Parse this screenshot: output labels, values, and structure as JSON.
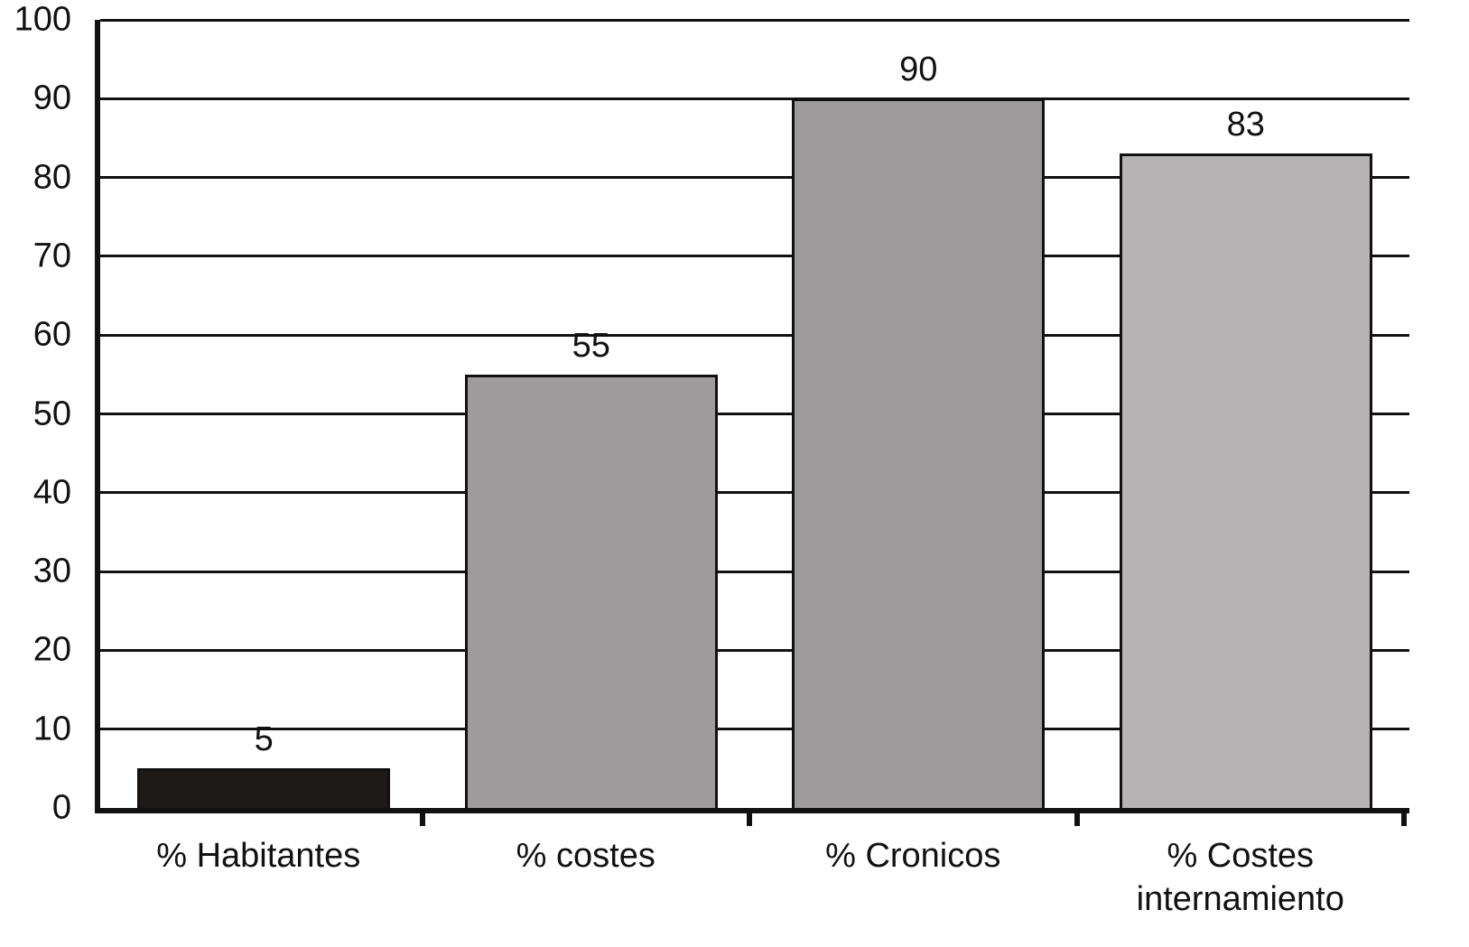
{
  "chart_data": {
    "type": "bar",
    "categories": [
      "% Habitantes",
      "% costes",
      "% Cronicos",
      "% Costes internamiento"
    ],
    "values": [
      5,
      55,
      90,
      83
    ],
    "data_labels": [
      "5",
      "55",
      "90",
      "83"
    ],
    "bar_colors": [
      "#1e1a18",
      "#9d9b9b",
      "#9d9b9b",
      "#b5b3b3"
    ],
    "title": "",
    "xlabel": "",
    "ylabel": "",
    "ylim": [
      0,
      100
    ],
    "yticks": [
      0,
      10,
      20,
      30,
      40,
      50,
      60,
      70,
      80,
      90,
      100
    ],
    "grid": "horizontal",
    "legend": "none",
    "axis_color": "#111111",
    "background_color": "#ffffff"
  }
}
